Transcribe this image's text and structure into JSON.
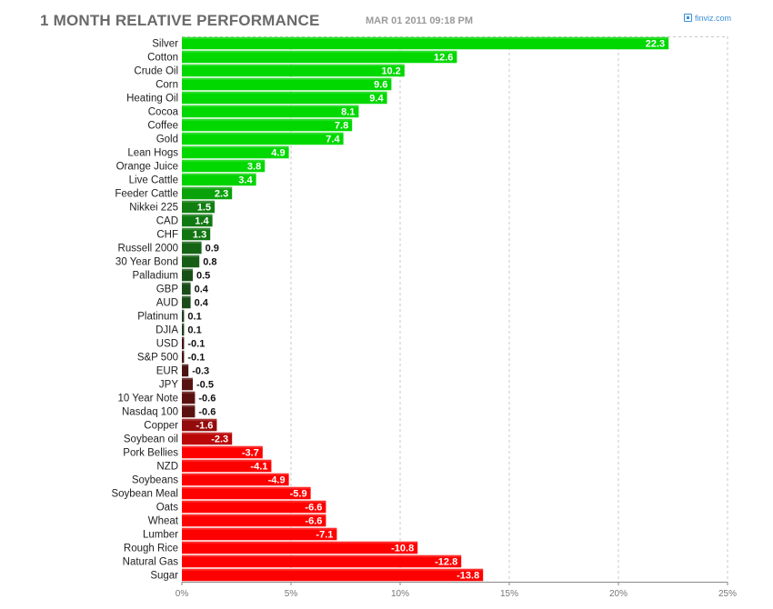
{
  "header": {
    "title": "1 MONTH RELATIVE PERFORMANCE",
    "date": "MAR 01 2011 09:18 PM",
    "brand": "finviz.com",
    "brand_icon": "finviz-logo-icon"
  },
  "chart_data": {
    "type": "bar",
    "orientation": "horizontal",
    "title": "1 MONTH RELATIVE PERFORMANCE",
    "xlim": [
      0,
      25
    ],
    "xticks": [
      0,
      5,
      10,
      15,
      20,
      25
    ],
    "xtick_labels": [
      "0%",
      "5%",
      "10%",
      "15%",
      "20%",
      "25%"
    ],
    "grid": true,
    "colors": {
      "positive_strong": "#00d800",
      "positive_weak": "#1c3a1c",
      "negative_weak": "#3a1414",
      "negative_strong": "#ff0000",
      "grid": "#c8c8c8"
    },
    "categories": [
      "Silver",
      "Cotton",
      "Crude Oil",
      "Corn",
      "Heating Oil",
      "Cocoa",
      "Coffee",
      "Gold",
      "Lean Hogs",
      "Orange Juice",
      "Live Cattle",
      "Feeder Cattle",
      "Nikkei 225",
      "CAD",
      "CHF",
      "Russell 2000",
      "30 Year Bond",
      "Palladium",
      "GBP",
      "AUD",
      "Platinum",
      "DJIA",
      "USD",
      "S&P 500",
      "EUR",
      "JPY",
      "10 Year Note",
      "Nasdaq 100",
      "Copper",
      "Soybean oil",
      "Pork Bellies",
      "NZD",
      "Soybeans",
      "Soybean Meal",
      "Oats",
      "Wheat",
      "Lumber",
      "Rough Rice",
      "Natural Gas",
      "Sugar"
    ],
    "values": [
      22.3,
      12.6,
      10.2,
      9.6,
      9.4,
      8.1,
      7.8,
      7.4,
      4.9,
      3.8,
      3.4,
      2.3,
      1.5,
      1.4,
      1.3,
      0.9,
      0.8,
      0.5,
      0.4,
      0.4,
      0.1,
      0.1,
      -0.1,
      -0.1,
      -0.3,
      -0.5,
      -0.6,
      -0.6,
      -1.6,
      -2.3,
      -3.7,
      -4.1,
      -4.9,
      -5.9,
      -6.6,
      -6.6,
      -7.1,
      -10.8,
      -12.8,
      -13.8
    ],
    "value_labels": [
      "22.3",
      "12.6",
      "10.2",
      "9.6",
      "9.4",
      "8.1",
      "7.8",
      "7.4",
      "4.9",
      "3.8",
      "3.4",
      "2.3",
      "1.5",
      "1.4",
      "1.3",
      "0.9",
      "0.8",
      "0.5",
      "0.4",
      "0.4",
      "0.1",
      "0.1",
      "-0.1",
      "-0.1",
      "-0.3",
      "-0.5",
      "-0.6",
      "-0.6",
      "-1.6",
      "-2.3",
      "-3.7",
      "-4.1",
      "-4.9",
      "-5.9",
      "-6.6",
      "-6.6",
      "-7.1",
      "-10.8",
      "-12.8",
      "-13.8"
    ],
    "note": "Bar lengths are absolute values; color encodes sign (green positive, red negative)."
  }
}
